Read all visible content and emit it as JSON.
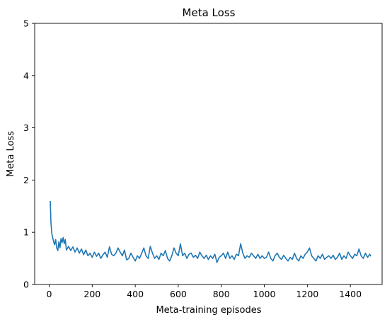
{
  "chart_data": {
    "type": "line",
    "title": "Meta Loss",
    "xlabel": "Meta-training episodes",
    "ylabel": "Meta Loss",
    "xlim": [
      -67.5,
      1547.5
    ],
    "ylim": [
      0,
      5
    ],
    "xticks": [
      0,
      200,
      400,
      600,
      800,
      1000,
      1200,
      1400
    ],
    "yticks": [
      0,
      1,
      2,
      3,
      4,
      5
    ],
    "grid": false,
    "series": [
      {
        "color": "#1f77b4",
        "points": [
          [
            5,
            1.6
          ],
          [
            8,
            1.2
          ],
          [
            12,
            0.98
          ],
          [
            16,
            0.9
          ],
          [
            20,
            0.83
          ],
          [
            25,
            0.76
          ],
          [
            30,
            0.86
          ],
          [
            35,
            0.7
          ],
          [
            40,
            0.65
          ],
          [
            45,
            0.82
          ],
          [
            50,
            0.7
          ],
          [
            55,
            0.88
          ],
          [
            60,
            0.8
          ],
          [
            65,
            0.9
          ],
          [
            70,
            0.78
          ],
          [
            75,
            0.86
          ],
          [
            80,
            0.66
          ],
          [
            90,
            0.73
          ],
          [
            100,
            0.65
          ],
          [
            110,
            0.72
          ],
          [
            120,
            0.62
          ],
          [
            130,
            0.7
          ],
          [
            140,
            0.6
          ],
          [
            150,
            0.68
          ],
          [
            160,
            0.57
          ],
          [
            170,
            0.66
          ],
          [
            180,
            0.55
          ],
          [
            190,
            0.6
          ],
          [
            200,
            0.52
          ],
          [
            210,
            0.62
          ],
          [
            220,
            0.54
          ],
          [
            230,
            0.6
          ],
          [
            240,
            0.5
          ],
          [
            250,
            0.57
          ],
          [
            260,
            0.62
          ],
          [
            270,
            0.52
          ],
          [
            280,
            0.72
          ],
          [
            290,
            0.58
          ],
          [
            300,
            0.55
          ],
          [
            310,
            0.6
          ],
          [
            320,
            0.7
          ],
          [
            330,
            0.62
          ],
          [
            340,
            0.55
          ],
          [
            350,
            0.66
          ],
          [
            360,
            0.47
          ],
          [
            370,
            0.5
          ],
          [
            380,
            0.6
          ],
          [
            390,
            0.52
          ],
          [
            400,
            0.45
          ],
          [
            410,
            0.55
          ],
          [
            420,
            0.5
          ],
          [
            430,
            0.6
          ],
          [
            440,
            0.7
          ],
          [
            450,
            0.55
          ],
          [
            460,
            0.5
          ],
          [
            470,
            0.73
          ],
          [
            480,
            0.6
          ],
          [
            490,
            0.5
          ],
          [
            500,
            0.55
          ],
          [
            510,
            0.48
          ],
          [
            520,
            0.6
          ],
          [
            530,
            0.55
          ],
          [
            540,
            0.65
          ],
          [
            550,
            0.5
          ],
          [
            560,
            0.45
          ],
          [
            570,
            0.55
          ],
          [
            580,
            0.7
          ],
          [
            590,
            0.6
          ],
          [
            600,
            0.55
          ],
          [
            610,
            0.78
          ],
          [
            620,
            0.55
          ],
          [
            630,
            0.6
          ],
          [
            640,
            0.5
          ],
          [
            650,
            0.58
          ],
          [
            660,
            0.6
          ],
          [
            670,
            0.52
          ],
          [
            680,
            0.56
          ],
          [
            690,
            0.5
          ],
          [
            700,
            0.62
          ],
          [
            710,
            0.55
          ],
          [
            720,
            0.5
          ],
          [
            730,
            0.56
          ],
          [
            740,
            0.48
          ],
          [
            750,
            0.55
          ],
          [
            760,
            0.5
          ],
          [
            770,
            0.58
          ],
          [
            780,
            0.42
          ],
          [
            790,
            0.52
          ],
          [
            800,
            0.55
          ],
          [
            810,
            0.6
          ],
          [
            820,
            0.5
          ],
          [
            830,
            0.62
          ],
          [
            840,
            0.5
          ],
          [
            850,
            0.55
          ],
          [
            860,
            0.48
          ],
          [
            870,
            0.58
          ],
          [
            880,
            0.55
          ],
          [
            890,
            0.78
          ],
          [
            900,
            0.6
          ],
          [
            910,
            0.5
          ],
          [
            920,
            0.55
          ],
          [
            930,
            0.52
          ],
          [
            940,
            0.6
          ],
          [
            950,
            0.55
          ],
          [
            960,
            0.5
          ],
          [
            970,
            0.58
          ],
          [
            980,
            0.5
          ],
          [
            990,
            0.55
          ],
          [
            1000,
            0.5
          ],
          [
            1010,
            0.52
          ],
          [
            1020,
            0.62
          ],
          [
            1030,
            0.5
          ],
          [
            1040,
            0.45
          ],
          [
            1050,
            0.55
          ],
          [
            1060,
            0.6
          ],
          [
            1070,
            0.52
          ],
          [
            1080,
            0.48
          ],
          [
            1090,
            0.56
          ],
          [
            1100,
            0.5
          ],
          [
            1110,
            0.45
          ],
          [
            1120,
            0.52
          ],
          [
            1130,
            0.48
          ],
          [
            1140,
            0.6
          ],
          [
            1150,
            0.5
          ],
          [
            1160,
            0.45
          ],
          [
            1170,
            0.55
          ],
          [
            1180,
            0.5
          ],
          [
            1190,
            0.58
          ],
          [
            1200,
            0.62
          ],
          [
            1210,
            0.7
          ],
          [
            1220,
            0.55
          ],
          [
            1230,
            0.5
          ],
          [
            1240,
            0.45
          ],
          [
            1250,
            0.55
          ],
          [
            1260,
            0.5
          ],
          [
            1270,
            0.58
          ],
          [
            1280,
            0.48
          ],
          [
            1290,
            0.52
          ],
          [
            1300,
            0.55
          ],
          [
            1310,
            0.5
          ],
          [
            1320,
            0.56
          ],
          [
            1330,
            0.48
          ],
          [
            1340,
            0.52
          ],
          [
            1350,
            0.6
          ],
          [
            1360,
            0.48
          ],
          [
            1370,
            0.55
          ],
          [
            1380,
            0.5
          ],
          [
            1390,
            0.62
          ],
          [
            1400,
            0.55
          ],
          [
            1410,
            0.5
          ],
          [
            1420,
            0.58
          ],
          [
            1430,
            0.55
          ],
          [
            1440,
            0.68
          ],
          [
            1450,
            0.55
          ],
          [
            1460,
            0.5
          ],
          [
            1470,
            0.6
          ],
          [
            1480,
            0.52
          ],
          [
            1490,
            0.58
          ],
          [
            1495,
            0.54
          ]
        ]
      }
    ]
  }
}
